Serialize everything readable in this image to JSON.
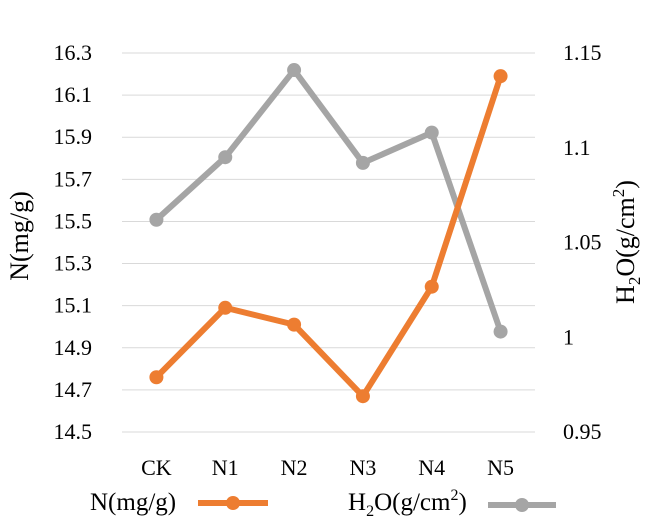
{
  "chart_data": {
    "type": "line",
    "categories": [
      "CK",
      "N1",
      "N2",
      "N3",
      "N4",
      "N5"
    ],
    "series": [
      {
        "name": "N(mg/g)",
        "axis": "left",
        "color": "#ed7d31",
        "values": [
          14.76,
          15.09,
          15.01,
          14.67,
          15.19,
          16.19
        ]
      },
      {
        "name": "H2O(g/cm2)",
        "axis": "right",
        "color": "#a5a5a5",
        "values": [
          1.062,
          1.095,
          1.141,
          1.092,
          1.108,
          1.003
        ]
      }
    ],
    "ylabel_left": "N(mg/g)",
    "ylabel_right": {
      "base": "H",
      "sub": "2",
      "mid": "O(g/cm",
      "sup": "2",
      "end": ")"
    },
    "ylim_left": [
      14.5,
      16.3
    ],
    "yticks_left": [
      "14.5",
      "14.7",
      "14.9",
      "15.1",
      "15.3",
      "15.5",
      "15.7",
      "15.9",
      "16.1",
      "16.3"
    ],
    "ylim_right": [
      0.95,
      1.15
    ],
    "yticks_right": [
      "0.95",
      "1",
      "1.05",
      "1.1",
      "1.15"
    ],
    "grid": true,
    "legend_position": "bottom",
    "legend": [
      {
        "label": "N(mg/g)"
      },
      {
        "label_base": "H",
        "label_sub": "2",
        "label_mid": "O(g/cm",
        "label_sup": "2",
        "label_end": ")"
      }
    ]
  }
}
